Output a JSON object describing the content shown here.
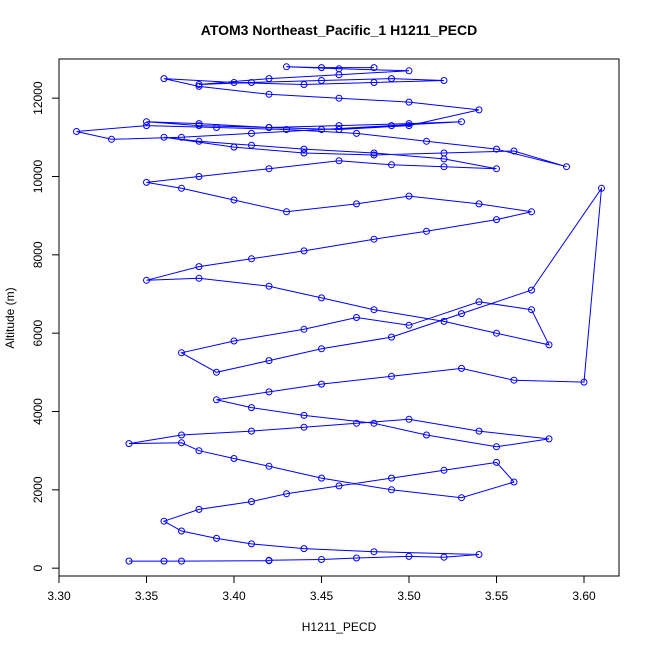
{
  "chart_data": {
    "type": "line",
    "title": "ATOM3 Northeast_Pacific_1 H1211_PECD",
    "xlabel": "H1211_PECD",
    "ylabel": "Altitude (m)",
    "xlim": [
      3.3,
      3.62
    ],
    "ylim": [
      -200,
      13000
    ],
    "xticks": [
      3.3,
      3.35,
      3.4,
      3.45,
      3.5,
      3.55,
      3.6
    ],
    "xtick_labels": [
      "3.30",
      "3.35",
      "3.40",
      "3.45",
      "3.50",
      "3.55",
      "3.60"
    ],
    "yticks": [
      0,
      2000,
      4000,
      6000,
      8000,
      10000,
      12000
    ],
    "ytick_labels": [
      "0",
      "2000",
      "4000",
      "6000",
      "8000",
      "10000",
      "12000"
    ],
    "grid": false,
    "legend": "none",
    "marker": "open-circle",
    "color": "#0000ff",
    "series": [
      {
        "x": [
          3.34,
          3.36,
          3.37,
          3.42,
          3.42,
          3.45,
          3.47,
          3.5,
          3.52,
          3.54,
          3.48,
          3.44,
          3.41,
          3.39,
          3.37,
          3.36,
          3.38,
          3.41,
          3.43,
          3.46,
          3.49,
          3.52,
          3.55,
          3.56,
          3.53,
          3.49,
          3.45,
          3.42,
          3.4,
          3.38,
          3.37,
          3.34,
          3.37,
          3.41,
          3.44,
          3.47,
          3.5,
          3.54,
          3.58,
          3.55,
          3.51,
          3.48,
          3.44,
          3.41,
          3.39,
          3.42,
          3.45,
          3.49,
          3.53,
          3.56,
          3.6,
          3.61,
          3.57,
          3.53,
          3.49,
          3.45,
          3.42,
          3.39,
          3.37,
          3.4,
          3.44,
          3.47,
          3.5,
          3.54,
          3.57,
          3.58,
          3.55,
          3.52,
          3.48,
          3.45,
          3.42,
          3.38,
          3.35,
          3.38,
          3.41,
          3.44,
          3.48,
          3.51,
          3.55,
          3.57,
          3.54,
          3.5,
          3.47,
          3.43,
          3.4,
          3.37,
          3.35,
          3.38,
          3.42,
          3.46,
          3.49,
          3.52,
          3.55,
          3.52,
          3.48,
          3.44,
          3.41,
          3.38,
          3.36,
          3.4,
          3.44,
          3.48,
          3.52,
          3.56,
          3.59,
          3.55,
          3.51,
          3.47,
          3.43,
          3.39,
          3.35,
          3.31,
          3.33,
          3.37,
          3.41,
          3.45,
          3.49,
          3.53,
          3.5,
          3.46,
          3.42,
          3.38,
          3.35,
          3.38,
          3.42,
          3.46,
          3.5,
          3.54,
          3.5,
          3.46,
          3.42,
          3.38,
          3.36,
          3.4,
          3.44,
          3.48,
          3.52,
          3.49,
          3.45,
          3.41,
          3.38,
          3.42,
          3.46,
          3.5,
          3.46,
          3.43,
          3.45,
          3.48
        ],
        "y": [
          180,
          180,
          180,
          190,
          200,
          220,
          260,
          300,
          280,
          350,
          420,
          500,
          620,
          760,
          950,
          1200,
          1500,
          1700,
          1900,
          2100,
          2300,
          2500,
          2700,
          2200,
          1800,
          2000,
          2300,
          2600,
          2800,
          3000,
          3200,
          3180,
          3400,
          3500,
          3600,
          3700,
          3800,
          3500,
          3300,
          3100,
          3400,
          3700,
          3900,
          4100,
          4300,
          4500,
          4700,
          4900,
          5100,
          4800,
          4750,
          9700,
          7100,
          6500,
          5900,
          5600,
          5300,
          5000,
          5500,
          5800,
          6100,
          6400,
          6200,
          6800,
          6600,
          5700,
          6000,
          6300,
          6600,
          6900,
          7200,
          7400,
          7350,
          7700,
          7900,
          8100,
          8400,
          8600,
          8900,
          9100,
          9300,
          9500,
          9300,
          9100,
          9400,
          9700,
          9850,
          10000,
          10200,
          10400,
          10300,
          10250,
          10200,
          10450,
          10600,
          10700,
          10800,
          10900,
          11000,
          10750,
          10600,
          10550,
          10600,
          10650,
          10250,
          10700,
          10900,
          11100,
          11200,
          11250,
          11300,
          11150,
          10950,
          11000,
          11100,
          11200,
          11300,
          11400,
          11350,
          11300,
          11250,
          11350,
          11400,
          11300,
          11250,
          11200,
          11300,
          11700,
          11900,
          12000,
          12100,
          12300,
          12500,
          12400,
          12350,
          12400,
          12450,
          12500,
          12450,
          12400,
          12350,
          12500,
          12600,
          12700,
          12750,
          12800,
          12780,
          12780
        ]
      }
    ]
  }
}
